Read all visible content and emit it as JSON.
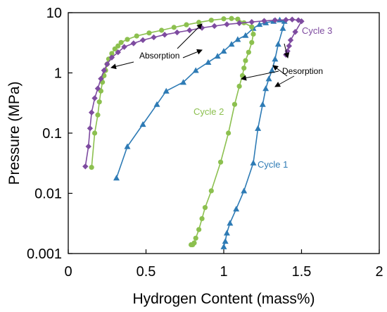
{
  "chart_data": {
    "type": "line",
    "xlabel": "Hydrogen Content (mass%)",
    "ylabel": "Pressure (MPa)",
    "xlim": [
      0,
      2
    ],
    "ylim": [
      0.001,
      10
    ],
    "yscale": "log",
    "x_ticks": [
      0,
      0.5,
      1,
      1.5,
      2
    ],
    "x_tick_labels": [
      "0",
      "0.5",
      "1",
      "1.5",
      "2"
    ],
    "y_ticks": [
      0.001,
      0.01,
      0.1,
      1,
      10
    ],
    "y_tick_labels": [
      "0.001",
      "0.01",
      "0.1",
      "1",
      "10"
    ],
    "grid": false,
    "series": [
      {
        "name": "Cycle 1",
        "color": "#2E7BB5",
        "marker": "triangle",
        "x": [
          0.31,
          0.38,
          0.48,
          0.57,
          0.63,
          0.74,
          0.82,
          0.9,
          0.96,
          1.0,
          1.05,
          1.09,
          1.14,
          1.19,
          1.23,
          1.27,
          1.32,
          1.36,
          1.39,
          1.38,
          1.35,
          1.33,
          1.31,
          1.29,
          1.27,
          1.25,
          1.22,
          1.19,
          1.13,
          1.08,
          1.04,
          1.02,
          1.01,
          1.0
        ],
        "y": [
          0.018,
          0.06,
          0.14,
          0.3,
          0.5,
          0.7,
          1.1,
          1.5,
          1.9,
          2.3,
          3.0,
          3.6,
          4.2,
          5.5,
          6.4,
          6.8,
          7.2,
          7.6,
          7.2,
          5.5,
          3.0,
          1.7,
          1.1,
          0.8,
          0.55,
          0.3,
          0.12,
          0.032,
          0.011,
          0.0055,
          0.0032,
          0.0022,
          0.0016,
          0.0013
        ]
      },
      {
        "name": "Cycle 2",
        "color": "#8CC04F",
        "marker": "circle",
        "x": [
          0.15,
          0.17,
          0.19,
          0.2,
          0.21,
          0.22,
          0.23,
          0.24,
          0.25,
          0.26,
          0.28,
          0.3,
          0.32,
          0.34,
          0.38,
          0.44,
          0.52,
          0.6,
          0.68,
          0.76,
          0.84,
          0.92,
          1.0,
          1.05,
          1.09,
          1.13,
          1.18,
          1.19,
          1.18,
          1.16,
          1.14,
          1.13,
          1.12,
          1.1,
          1.07,
          1.03,
          0.98,
          0.92,
          0.88,
          0.86,
          0.84,
          0.82,
          0.81,
          0.8,
          0.79
        ],
        "y": [
          0.027,
          0.1,
          0.2,
          0.33,
          0.5,
          0.7,
          0.9,
          1.1,
          1.4,
          1.7,
          2.1,
          2.5,
          2.8,
          3.2,
          3.6,
          4.1,
          4.6,
          5.1,
          5.7,
          6.3,
          6.9,
          7.5,
          7.9,
          8.0,
          7.8,
          6.8,
          5.8,
          4.4,
          3.2,
          2.2,
          1.6,
          1.2,
          0.9,
          0.6,
          0.3,
          0.1,
          0.033,
          0.011,
          0.0058,
          0.0038,
          0.0025,
          0.0018,
          0.0015,
          0.0014,
          0.0014
        ]
      },
      {
        "name": "Cycle 3",
        "color": "#7E4BA0",
        "marker": "diamond",
        "x": [
          0.11,
          0.13,
          0.14,
          0.15,
          0.17,
          0.19,
          0.21,
          0.23,
          0.25,
          0.28,
          0.32,
          0.36,
          0.42,
          0.48,
          0.55,
          0.62,
          0.7,
          0.78,
          0.86,
          0.94,
          1.02,
          1.1,
          1.18,
          1.26,
          1.33,
          1.4,
          1.44,
          1.48,
          1.5,
          1.46,
          1.43,
          1.42,
          1.41,
          1.4
        ],
        "y": [
          0.028,
          0.06,
          0.12,
          0.22,
          0.38,
          0.55,
          0.8,
          1.1,
          1.4,
          1.8,
          2.2,
          2.7,
          3.1,
          3.5,
          3.9,
          4.3,
          4.7,
          5.1,
          5.6,
          6.0,
          6.4,
          6.7,
          7.0,
          7.3,
          7.5,
          7.6,
          7.7,
          7.5,
          7.2,
          4.8,
          3.5,
          2.8,
          2.3,
          2.0
        ]
      }
    ],
    "annotations": [
      {
        "text": "Absorption"
      },
      {
        "text": "Desorption"
      },
      {
        "text": "Cycle 1"
      },
      {
        "text": "Cycle 2"
      },
      {
        "text": "Cycle 3"
      }
    ]
  }
}
